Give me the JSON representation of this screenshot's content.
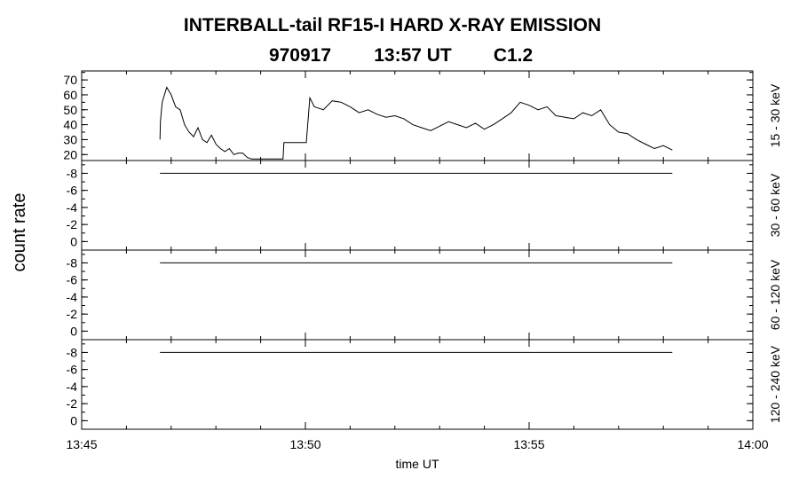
{
  "chart_data": {
    "type": "line",
    "title": "INTERBALL-tail  RF15-I  HARD  X-RAY  EMISSION",
    "subtitle": {
      "date": "970917",
      "time": "13:57 UT",
      "class": "C1.2"
    },
    "ylabel": "count rate",
    "xlabel": "time UT",
    "x_ticks": [
      "13:45",
      "13:50",
      "13:55",
      "14:00"
    ],
    "xlim_minutes": [
      0,
      15
    ],
    "grid": false,
    "panels": [
      {
        "channel_label": "15 - 30 keV",
        "ylim": [
          16,
          76
        ],
        "y_ticks": [
          "70",
          "60",
          "50",
          "40",
          "30",
          "20"
        ],
        "y_tick_values": [
          70,
          60,
          50,
          40,
          30,
          20
        ],
        "series": {
          "x": [
            1.75,
            1.76,
            1.8,
            1.9,
            2.0,
            2.1,
            2.2,
            2.3,
            2.4,
            2.5,
            2.6,
            2.7,
            2.8,
            2.9,
            3.0,
            3.1,
            3.2,
            3.3,
            3.4,
            3.5,
            3.6,
            3.7,
            3.8,
            3.9,
            3.95,
            4.0,
            4.5,
            4.52,
            5.0,
            5.02,
            5.1,
            5.2,
            5.4,
            5.6,
            5.8,
            6.0,
            6.2,
            6.4,
            6.6,
            6.8,
            7.0,
            7.2,
            7.4,
            7.6,
            7.8,
            8.0,
            8.2,
            8.4,
            8.6,
            8.8,
            9.0,
            9.2,
            9.4,
            9.6,
            9.8,
            10.0,
            10.2,
            10.4,
            10.6,
            10.8,
            11.0,
            11.2,
            11.4,
            11.6,
            11.8,
            12.0,
            12.2,
            12.4,
            12.6,
            12.8,
            13.0,
            13.2
          ],
          "y": [
            30,
            42,
            55,
            65,
            60,
            52,
            50,
            40,
            35,
            32,
            38,
            30,
            28,
            33,
            27,
            24,
            22,
            24,
            20,
            21,
            21,
            18,
            17,
            17,
            17,
            17,
            17,
            28,
            28,
            28,
            58,
            52,
            50,
            56,
            55,
            52,
            48,
            50,
            47,
            45,
            46,
            44,
            40,
            38,
            36,
            39,
            42,
            40,
            38,
            41,
            37,
            40,
            44,
            48,
            55,
            53,
            50,
            52,
            46,
            45,
            44,
            48,
            46,
            50,
            40,
            35,
            34,
            30,
            27,
            24,
            26,
            23
          ]
        }
      },
      {
        "channel_label": "30 - 60 keV",
        "ylim": [
          -1,
          9.5
        ],
        "y_ticks": [
          "-8",
          "-6",
          "-4",
          "-2",
          "0"
        ],
        "y_tick_values": [
          8,
          6,
          4,
          2,
          0
        ],
        "series": {
          "x": [
            1.75,
            13.2
          ],
          "y": [
            8,
            8
          ]
        }
      },
      {
        "channel_label": "60 - 120 keV",
        "ylim": [
          -1,
          9.5
        ],
        "y_ticks": [
          "-8",
          "-6",
          "-4",
          "-2",
          "0"
        ],
        "y_tick_values": [
          8,
          6,
          4,
          2,
          0
        ],
        "series": {
          "x": [
            1.75,
            13.2
          ],
          "y": [
            8,
            8
          ]
        }
      },
      {
        "channel_label": "120 - 240 keV",
        "ylim": [
          -1,
          9.5
        ],
        "y_ticks": [
          "-8",
          "-6",
          "-4",
          "-2",
          "0"
        ],
        "y_tick_values": [
          8,
          6,
          4,
          2,
          0
        ],
        "series": {
          "x": [
            1.75,
            13.2
          ],
          "y": [
            8,
            8
          ]
        }
      }
    ]
  }
}
